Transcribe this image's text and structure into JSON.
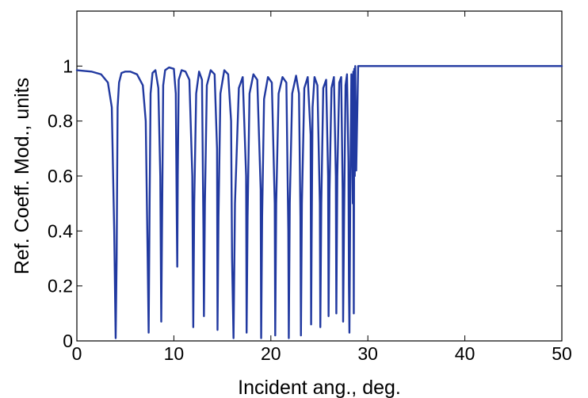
{
  "chart_data": {
    "type": "line",
    "title": "",
    "xlabel": "Incident ang., deg.",
    "ylabel": "Ref. Coeff. Mod., units",
    "xlim": [
      0,
      50
    ],
    "ylim": [
      0,
      1.2
    ],
    "xticks": [
      0,
      10,
      20,
      30,
      40,
      50
    ],
    "yticks": [
      0,
      0.2,
      0.4,
      0.6,
      0.8,
      1
    ],
    "xtick_labels": [
      "0",
      "10",
      "20",
      "30",
      "40",
      "50"
    ],
    "ytick_labels": [
      "0",
      "0.2",
      "0.4",
      "0.6",
      "0.8",
      "1"
    ],
    "grid": false,
    "legend": "none",
    "series_color": "#2139a0",
    "series": [
      {
        "x": [
          0,
          1.5,
          2.5,
          3.2,
          3.6,
          3.85,
          4.0,
          4.1,
          4.2,
          4.35,
          4.6,
          5.0,
          5.5,
          6.2,
          6.8,
          7.1,
          7.3,
          7.4,
          7.5,
          7.6,
          7.8,
          8.1,
          8.4,
          8.6,
          8.7,
          8.8,
          8.9,
          9.1,
          9.5,
          10.0,
          10.2,
          10.3,
          10.35,
          10.4,
          10.5,
          10.8,
          11.2,
          11.6,
          11.9,
          12.0,
          12.1,
          12.3,
          12.6,
          12.9,
          13.05,
          13.1,
          13.2,
          13.4,
          13.8,
          14.2,
          14.45,
          14.5,
          14.6,
          14.8,
          15.2,
          15.6,
          15.9,
          16.0,
          16.15,
          16.3,
          16.7,
          17.1,
          17.45,
          17.5,
          17.6,
          17.8,
          18.2,
          18.6,
          18.95,
          19.0,
          19.1,
          19.3,
          19.7,
          20.1,
          20.4,
          20.45,
          20.55,
          20.8,
          21.2,
          21.6,
          21.8,
          21.85,
          21.95,
          22.2,
          22.6,
          22.9,
          23.05,
          23.1,
          23.2,
          23.45,
          23.8,
          24.1,
          24.15,
          24.2,
          24.3,
          24.5,
          24.8,
          25.05,
          25.1,
          25.2,
          25.4,
          25.7,
          25.9,
          25.95,
          26.05,
          26.25,
          26.5,
          26.7,
          26.75,
          26.85,
          27.05,
          27.25,
          27.4,
          27.45,
          27.55,
          27.7,
          27.85,
          28.0,
          28.05,
          28.1,
          28.2,
          28.3,
          28.45,
          28.5,
          28.55,
          28.6,
          28.65,
          28.7,
          28.8,
          29.0,
          30.0,
          40.0,
          50.0
        ],
        "y": [
          0.985,
          0.98,
          0.97,
          0.94,
          0.85,
          0.4,
          0.01,
          0.3,
          0.85,
          0.94,
          0.975,
          0.98,
          0.98,
          0.97,
          0.93,
          0.8,
          0.3,
          0.03,
          0.5,
          0.9,
          0.975,
          0.985,
          0.92,
          0.6,
          0.07,
          0.5,
          0.93,
          0.985,
          0.995,
          0.99,
          0.9,
          0.45,
          0.27,
          0.6,
          0.95,
          0.985,
          0.98,
          0.95,
          0.6,
          0.05,
          0.5,
          0.9,
          0.98,
          0.95,
          0.4,
          0.09,
          0.5,
          0.93,
          0.985,
          0.97,
          0.7,
          0.04,
          0.45,
          0.9,
          0.985,
          0.97,
          0.8,
          0.3,
          0.01,
          0.5,
          0.92,
          0.96,
          0.6,
          0.03,
          0.45,
          0.9,
          0.97,
          0.95,
          0.55,
          0.01,
          0.45,
          0.88,
          0.96,
          0.94,
          0.5,
          0.02,
          0.5,
          0.9,
          0.96,
          0.94,
          0.4,
          0.01,
          0.5,
          0.9,
          0.965,
          0.9,
          0.45,
          0.02,
          0.5,
          0.92,
          0.96,
          0.75,
          0.06,
          0.35,
          0.85,
          0.96,
          0.93,
          0.5,
          0.05,
          0.5,
          0.92,
          0.95,
          0.6,
          0.09,
          0.55,
          0.92,
          0.96,
          0.6,
          0.1,
          0.6,
          0.94,
          0.96,
          0.55,
          0.07,
          0.45,
          0.93,
          0.97,
          0.65,
          0.2,
          0.03,
          0.6,
          0.97,
          0.5,
          0.98,
          0.1,
          0.99,
          0.6,
          1.0,
          0.62,
          1.0,
          1.0,
          1.0,
          1.0
        ]
      }
    ]
  }
}
